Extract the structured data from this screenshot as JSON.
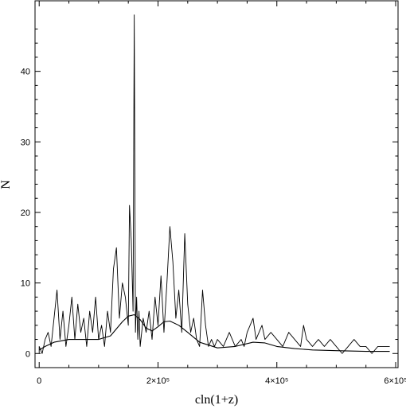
{
  "chart_data": {
    "type": "line",
    "title": "",
    "xlabel": "cln(1+z)",
    "ylabel": "N",
    "xlim": [
      -7000,
      604000
    ],
    "ylim": [
      -2,
      50
    ],
    "x_ticks": [
      {
        "value": 0,
        "label": "0"
      },
      {
        "value": 200000,
        "label": "2×10⁵"
      },
      {
        "value": 400000,
        "label": "4×10⁵"
      },
      {
        "value": 600000,
        "label": "6×10⁵"
      }
    ],
    "y_ticks": [
      {
        "value": 0,
        "label": "0"
      },
      {
        "value": 10,
        "label": "10"
      },
      {
        "value": 20,
        "label": "20"
      },
      {
        "value": 30,
        "label": "30"
      },
      {
        "value": 40,
        "label": "40"
      }
    ],
    "grid": false,
    "legend": "none",
    "series": [
      {
        "style": "histogram",
        "x": [
          0,
          5000,
          10000,
          15000,
          20000,
          25000,
          30000,
          35000,
          40000,
          45000,
          50000,
          55000,
          60000,
          65000,
          70000,
          75000,
          80000,
          85000,
          90000,
          95000,
          100000,
          105000,
          110000,
          115000,
          120000,
          125000,
          130000,
          135000,
          140000,
          145000,
          150000,
          152000,
          155000,
          158000,
          160000,
          162000,
          164000,
          166000,
          168000,
          170000,
          175000,
          180000,
          185000,
          190000,
          195000,
          200000,
          205000,
          210000,
          215000,
          220000,
          225000,
          230000,
          235000,
          240000,
          245000,
          250000,
          255000,
          260000,
          265000,
          270000,
          275000,
          280000,
          285000,
          290000,
          295000,
          300000,
          310000,
          320000,
          330000,
          340000,
          345000,
          350000,
          355000,
          360000,
          365000,
          370000,
          375000,
          380000,
          390000,
          400000,
          410000,
          420000,
          430000,
          440000,
          445000,
          450000,
          460000,
          470000,
          480000,
          490000,
          500000,
          510000,
          520000,
          530000,
          540000,
          550000,
          560000,
          570000,
          580000,
          590000
        ],
        "y": [
          1,
          0,
          2,
          3,
          1,
          5,
          9,
          2,
          6,
          1,
          4,
          8,
          2,
          7,
          3,
          5,
          1,
          6,
          3,
          8,
          2,
          4,
          1,
          6,
          3,
          12,
          15,
          5,
          10,
          8,
          4,
          21,
          16,
          6,
          48,
          3,
          8,
          2,
          6,
          1,
          5,
          3,
          6,
          2,
          8,
          4,
          11,
          3,
          10,
          18,
          13,
          5,
          9,
          3,
          17,
          7,
          3,
          5,
          2,
          1,
          9,
          4,
          1,
          2,
          1,
          2,
          1,
          3,
          1,
          2,
          1,
          3,
          4,
          5,
          2,
          3,
          4,
          2,
          3,
          2,
          1,
          3,
          2,
          1,
          4,
          2,
          1,
          2,
          1,
          2,
          1,
          0,
          1,
          2,
          1,
          1,
          0,
          1,
          1,
          1
        ]
      },
      {
        "style": "smooth",
        "x": [
          0,
          10000,
          25000,
          50000,
          75000,
          100000,
          120000,
          130000,
          140000,
          150000,
          160000,
          170000,
          180000,
          190000,
          200000,
          210000,
          220000,
          235000,
          250000,
          270000,
          300000,
          330000,
          360000,
          380000,
          400000,
          430000,
          460000,
          500000,
          550000,
          590000
        ],
        "y": [
          0.5,
          1.0,
          1.6,
          2.0,
          2.0,
          2.0,
          2.5,
          3.5,
          4.5,
          5.3,
          5.5,
          4.8,
          3.6,
          3.2,
          3.8,
          4.5,
          4.6,
          4.0,
          3.0,
          1.6,
          0.8,
          1.0,
          1.6,
          1.5,
          1.0,
          0.7,
          0.5,
          0.4,
          0.3,
          0.3
        ]
      }
    ]
  }
}
